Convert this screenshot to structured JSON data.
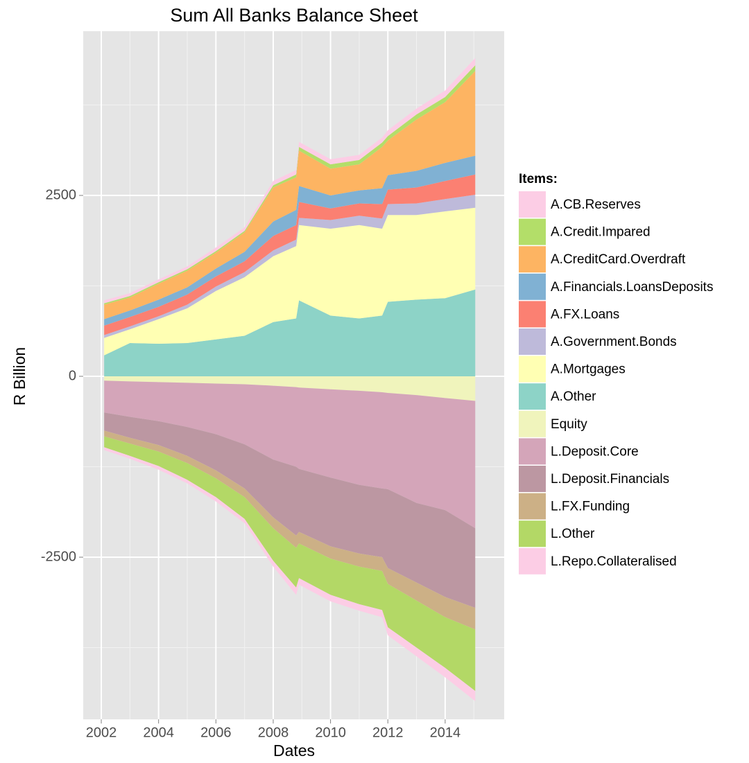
{
  "chart_data": {
    "type": "area_stacked",
    "title": "Sum All Banks Balance Sheet",
    "x_label": "Dates",
    "y_label": "R Billion",
    "legend_title": "Items:",
    "legend": "right",
    "grid": true,
    "xlim": [
      2001.37,
      2016.06
    ],
    "ylim": [
      -4741,
      4770
    ],
    "xticks": [
      2002,
      2004,
      2006,
      2008,
      2010,
      2012,
      2014
    ],
    "xminor": [
      2003,
      2005,
      2007,
      2009,
      2011,
      2013,
      2015
    ],
    "yticks": [
      -2500,
      0,
      2500
    ],
    "yminor": [
      -3750,
      -1250,
      1250,
      3750
    ],
    "x": [
      2002.1,
      2003,
      2004,
      2005,
      2006,
      2007,
      2008,
      2008.8,
      2008.9,
      2010,
      2011,
      2011.8,
      2012,
      2013,
      2014,
      2015.05
    ],
    "series": [
      {
        "name": "A.CB.Reserves",
        "color": "#fccde5",
        "values": [
          40,
          40,
          40,
          40,
          50,
          50,
          60,
          60,
          70,
          70,
          70,
          70,
          80,
          80,
          90,
          100
        ]
      },
      {
        "name": "A.Credit.Impared",
        "color": "#b3de69",
        "values": [
          20,
          20,
          20,
          20,
          20,
          20,
          30,
          40,
          50,
          60,
          60,
          60,
          60,
          70,
          70,
          80
        ]
      },
      {
        "name": "A.CreditCard.Overdraft",
        "color": "#fdb462",
        "values": [
          200,
          180,
          220,
          230,
          220,
          270,
          470,
          450,
          490,
          370,
          360,
          570,
          480,
          710,
          840,
          1170
        ]
      },
      {
        "name": "A.Financials.LoansDeposits",
        "color": "#80b1d3",
        "values": [
          90,
          90,
          100,
          100,
          110,
          130,
          200,
          210,
          220,
          180,
          180,
          220,
          200,
          230,
          250,
          260
        ]
      },
      {
        "name": "A.FX.Loans",
        "color": "#fb8072",
        "values": [
          130,
          130,
          130,
          140,
          140,
          150,
          200,
          200,
          220,
          160,
          170,
          200,
          200,
          220,
          250,
          280
        ]
      },
      {
        "name": "A.Government.Bonds",
        "color": "#bebada",
        "values": [
          40,
          40,
          40,
          50,
          60,
          70,
          80,
          90,
          100,
          120,
          130,
          140,
          150,
          160,
          170,
          180
        ]
      },
      {
        "name": "A.Mortgages",
        "color": "#ffffb3",
        "values": [
          240,
          190,
          340,
          480,
          670,
          810,
          910,
          1000,
          1040,
          1200,
          1290,
          1200,
          1200,
          1170,
          1200,
          1130
        ]
      },
      {
        "name": "A.Other",
        "color": "#8dd3c7",
        "values": [
          290,
          460,
          450,
          460,
          510,
          560,
          750,
          800,
          1050,
          840,
          800,
          840,
          1030,
          1060,
          1080,
          1200
        ]
      },
      {
        "name": "Equity",
        "color": "#f0f4bc",
        "values": [
          -60,
          -70,
          -80,
          -90,
          -100,
          -110,
          -130,
          -150,
          -155,
          -180,
          -200,
          -220,
          -230,
          -260,
          -300,
          -340
        ]
      },
      {
        "name": "L.Deposit.Core",
        "color": "#d4a5b9",
        "values": [
          -440,
          -490,
          -540,
          -610,
          -700,
          -830,
          -1020,
          -1100,
          -1125,
          -1220,
          -1300,
          -1330,
          -1330,
          -1490,
          -1550,
          -1760
        ]
      },
      {
        "name": "L.Deposit.Financials",
        "color": "#bc97a2",
        "values": [
          -250,
          -290,
          -330,
          -400,
          -500,
          -610,
          -800,
          -950,
          -870,
          -950,
          -950,
          -950,
          -1090,
          -1100,
          -1200,
          -1100
        ]
      },
      {
        "name": "L.FX.Funding",
        "color": "#ccb086",
        "values": [
          -80,
          -80,
          -90,
          -100,
          -110,
          -120,
          -150,
          -170,
          -160,
          -170,
          -180,
          -190,
          -220,
          -250,
          -280,
          -300
        ]
      },
      {
        "name": "L.Other",
        "color": "#b3d866",
        "values": [
          -150,
          -170,
          -200,
          -230,
          -260,
          -300,
          -450,
          -550,
          -480,
          -500,
          -520,
          -540,
          -600,
          -650,
          -700,
          -850
        ]
      },
      {
        "name": "L.Repo.Collateralised",
        "color": "#fccde5",
        "values": [
          -40,
          -40,
          -50,
          -50,
          -60,
          -60,
          -80,
          -100,
          -90,
          -90,
          -90,
          -100,
          -110,
          -120,
          -130,
          -140
        ]
      }
    ]
  }
}
